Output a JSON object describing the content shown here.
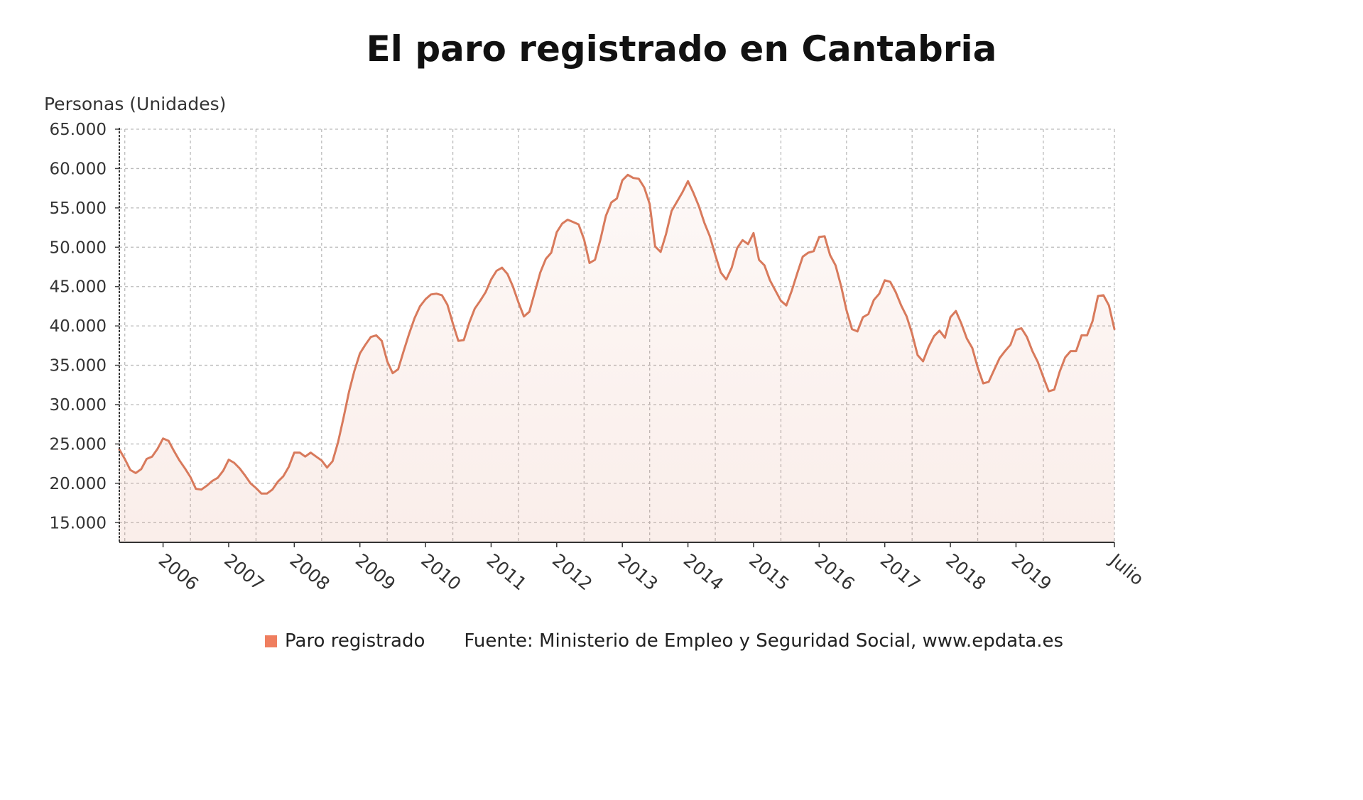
{
  "chart_data": {
    "type": "area",
    "title": "El paro registrado en Cantabria",
    "ylabel": "Personas (Unidades)",
    "xlabel": "",
    "ylim": [
      12500,
      65000
    ],
    "yticks": [
      15000,
      20000,
      25000,
      30000,
      35000,
      40000,
      45000,
      50000,
      55000,
      60000,
      65000
    ],
    "ytick_labels": [
      "15.000",
      "20.000",
      "25.000",
      "30.000",
      "35.000",
      "40.000",
      "45.000",
      "50.000",
      "55.000",
      "60.000",
      "65.000"
    ],
    "xtick_labels": [
      "2006",
      "2007",
      "2008",
      "2009",
      "2010",
      "2011",
      "2012",
      "2013",
      "2014",
      "2015",
      "2016",
      "2017",
      "2018",
      "2019",
      "Julio"
    ],
    "grid": true,
    "color": "#d87a5c",
    "legend_swatch_color": "#ef7e5f",
    "series": [
      {
        "name": "Paro registrado",
        "start": "2005-05",
        "end": "2020-07",
        "frequency": "monthly",
        "values": [
          24300,
          23100,
          21700,
          21300,
          21800,
          23100,
          23400,
          24400,
          25700,
          25400,
          24100,
          22900,
          21900,
          20800,
          19300,
          19200,
          19700,
          20300,
          20700,
          21600,
          23000,
          22600,
          21900,
          21000,
          20000,
          19400,
          18700,
          18700,
          19200,
          20200,
          20900,
          22100,
          23900,
          23900,
          23400,
          23900,
          23400,
          22900,
          22000,
          22800,
          25200,
          28300,
          31600,
          34300,
          36500,
          37600,
          38600,
          38800,
          38100,
          35500,
          34000,
          34500,
          36800,
          39000,
          41000,
          42500,
          43400,
          44000,
          44100,
          43900,
          42700,
          40300,
          38100,
          38200,
          40400,
          42200,
          43200,
          44300,
          45900,
          47000,
          47400,
          46600,
          45000,
          43000,
          41200,
          41800,
          44300,
          46800,
          48500,
          49300,
          51900,
          53000,
          53500,
          53200,
          52900,
          51000,
          48000,
          48400,
          51000,
          54000,
          55700,
          56200,
          58500,
          59200,
          58800,
          58700,
          57600,
          55500,
          50100,
          49400,
          51700,
          54600,
          55800,
          57000,
          58400,
          56900,
          55200,
          53100,
          51400,
          49000,
          46800,
          45900,
          47400,
          49900,
          50900,
          50400,
          51800,
          48400,
          47700,
          45800,
          44500,
          43200,
          42600,
          44500,
          46700,
          48800,
          49300,
          49500,
          51300,
          51400,
          49000,
          47700,
          45100,
          42000,
          39600,
          39300,
          41100,
          41500,
          43300,
          44100,
          45800,
          45600,
          44300,
          42600,
          41200,
          39000,
          36300,
          35500,
          37300,
          38700,
          39400,
          38500,
          41100,
          41900,
          40300,
          38400,
          37200,
          34700,
          32700,
          32900,
          34400,
          35900,
          36800,
          37600,
          39500,
          39700,
          38600,
          36800,
          35400,
          33500,
          31700,
          31900,
          34200,
          36000,
          36800,
          36800,
          38800,
          38800,
          40600,
          43800,
          43900,
          42600,
          39600
        ]
      }
    ]
  },
  "legend": {
    "series_label": "Paro registrado",
    "source": "Fuente: Ministerio de Empleo y Seguridad Social, www.epdata.es"
  }
}
